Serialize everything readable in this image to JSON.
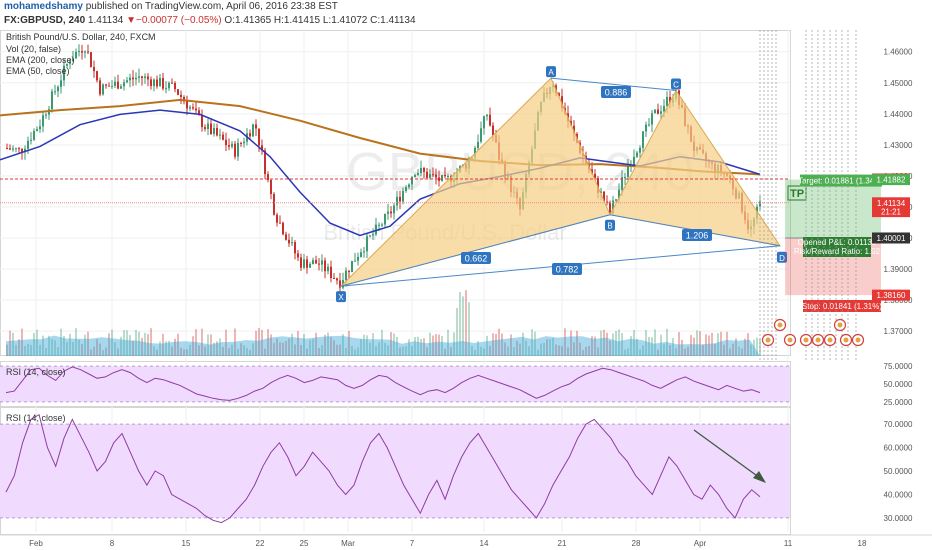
{
  "header": {
    "author": "mohamedshamy",
    "published_text": "published on TradingView.com, April 06, 2016 23:38 EST",
    "symbol_line": "FX:GBPUSD, 240",
    "last": "1.41134",
    "change": "▼−0.00077 (−0.05%)",
    "open": "O:1.41365",
    "high": "H:1.41415",
    "low": "L:1.41072",
    "close": "C:1.41134"
  },
  "colors": {
    "up": "#3d9970",
    "down": "#c8302c",
    "ema200": "#b8731b",
    "ema50": "#2b36b8",
    "pattern_fill": "#f6cf84",
    "pattern_line": "#4a88c7",
    "rsi": "#8e3da0",
    "rsi_band": "#f0dbff",
    "target": "#4caf50",
    "stop": "#e53935",
    "arrow": "#3e5a3c"
  },
  "chart_data": [
    {
      "type": "candlestick",
      "title": "British Pound/U.S. Dollar, 240, FXCM",
      "watermark_symbol": "GBPUSD",
      "watermark_name": "British Pound/U.S. Dollar",
      "legend": [
        "Vol (20, false)",
        "EMA (200, close)",
        "EMA (50, close)"
      ],
      "ylim": [
        1.362,
        1.467
      ],
      "y_ticks": [
        1.37,
        1.38,
        1.39,
        1.4,
        1.41,
        1.42,
        1.43,
        1.44,
        1.45,
        1.46
      ],
      "x_ticks": [
        "Feb",
        "8",
        "15",
        "22",
        "25",
        "Mar",
        "7",
        "14",
        "21",
        "28",
        "Apr",
        "11",
        "18"
      ],
      "price_tags": [
        {
          "label": "1.41902",
          "value": 1.41902,
          "color": "#e53935"
        },
        {
          "label": "1.41882",
          "value": 1.41882,
          "color": "#4caf50"
        },
        {
          "label": "1.41134",
          "value": 1.41134,
          "color": "#e53935"
        },
        {
          "label": "21:21",
          "value": 1.4085,
          "color": "#e53935"
        },
        {
          "label": "1.40001",
          "value": 1.40001,
          "color": "#333333"
        },
        {
          "label": "1.38160",
          "value": 1.3816,
          "color": "#e53935"
        }
      ],
      "ema200": [
        [
          0,
          1.4395
        ],
        [
          60,
          1.4412
        ],
        [
          120,
          1.4425
        ],
        [
          180,
          1.4445
        ],
        [
          240,
          1.4425
        ],
        [
          300,
          1.4378
        ],
        [
          360,
          1.4322
        ],
        [
          420,
          1.4272
        ],
        [
          480,
          1.4248
        ],
        [
          540,
          1.4235
        ],
        [
          600,
          1.4238
        ],
        [
          660,
          1.4226
        ],
        [
          700,
          1.4215
        ],
        [
          760,
          1.4205
        ]
      ],
      "ema50": [
        [
          0,
          1.4252
        ],
        [
          40,
          1.4295
        ],
        [
          80,
          1.4365
        ],
        [
          120,
          1.4398
        ],
        [
          160,
          1.4412
        ],
        [
          200,
          1.4398
        ],
        [
          240,
          1.4345
        ],
        [
          270,
          1.4262
        ],
        [
          300,
          1.4148
        ],
        [
          330,
          1.4048
        ],
        [
          360,
          1.4008
        ],
        [
          390,
          1.4038
        ],
        [
          420,
          1.4125
        ],
        [
          460,
          1.4175
        ],
        [
          500,
          1.4198
        ],
        [
          540,
          1.4225
        ],
        [
          580,
          1.4258
        ],
        [
          610,
          1.4245
        ],
        [
          640,
          1.4232
        ],
        [
          680,
          1.4262
        ],
        [
          720,
          1.4245
        ],
        [
          760,
          1.4205
        ]
      ],
      "harmonic_pattern": {
        "points": [
          {
            "label": "X",
            "date": "Feb 29",
            "value": 1.3845
          },
          {
            "label": "A",
            "date": "Mar 18",
            "value": 1.4515
          },
          {
            "label": "B",
            "date": "Mar 24",
            "value": 1.4075
          },
          {
            "label": "C",
            "date": "Mar 30",
            "value": 1.4475
          },
          {
            "label": "D",
            "date": "Apr 8",
            "value": 1.3975
          }
        ],
        "ratios": [
          "0.886",
          "0.662",
          "1.206",
          "0.782"
        ]
      },
      "position": {
        "target_label": "Target: 0.01881 (1.34%)",
        "tp_label": "TP",
        "open_pl_label": "Opened P&L: 0.01133",
        "risk_reward_label": "Risk/Reward Ratio: 1.02",
        "stop_label": "Stop: 0.01841 (1.31%)",
        "entry": 1.40001,
        "target": 1.41882,
        "stop": 1.3816
      }
    },
    {
      "type": "line",
      "title": "RSI (14, close)",
      "ylim": [
        22,
        78
      ],
      "band": [
        25,
        75
      ],
      "y_ticks": [
        25,
        50,
        75
      ],
      "y_tick_labels": [
        "25.0000",
        "50.0000",
        "75.0000"
      ],
      "series": [
        {
          "name": "RSI (14, close)",
          "values": [
            38,
            40,
            55,
            70,
            72,
            62,
            55,
            68,
            74,
            70,
            64,
            58,
            60,
            66,
            70,
            66,
            58,
            52,
            58,
            56,
            52,
            48,
            42,
            36,
            33,
            30,
            28,
            27,
            30,
            34,
            40,
            44,
            52,
            58,
            62,
            58,
            52,
            55,
            60,
            58,
            56,
            48,
            44,
            48,
            56,
            62,
            60,
            52,
            46,
            40,
            35,
            40,
            42,
            38,
            44,
            52,
            58,
            62,
            58,
            54,
            50,
            46,
            42,
            36,
            30,
            34,
            40,
            46,
            50,
            58,
            64,
            68,
            72,
            70,
            66,
            62,
            58,
            54,
            48,
            44,
            50,
            56,
            60,
            54,
            50,
            46,
            42,
            48,
            44,
            40,
            42,
            38
          ]
        }
      ]
    },
    {
      "type": "line",
      "title": "RSI (14, close)",
      "ylim": [
        24,
        76
      ],
      "band": [
        30,
        70
      ],
      "y_ticks": [
        30,
        40,
        50,
        60,
        70
      ],
      "y_tick_labels": [
        "30.0000",
        "40.0000",
        "50.0000",
        "60.0000",
        "70.0000"
      ],
      "annotation": "downward arrow (divergence)",
      "series": [
        {
          "name": "RSI (14, close)",
          "values": [
            41,
            48,
            62,
            72,
            74,
            60,
            52,
            64,
            72,
            65,
            58,
            50,
            54,
            62,
            66,
            58,
            50,
            44,
            50,
            48,
            40,
            38,
            36,
            34,
            31,
            29,
            28,
            30,
            34,
            38,
            44,
            52,
            58,
            62,
            56,
            48,
            52,
            58,
            54,
            50,
            44,
            40,
            44,
            54,
            62,
            66,
            60,
            52,
            44,
            38,
            32,
            40,
            46,
            38,
            48,
            56,
            62,
            66,
            60,
            54,
            48,
            42,
            38,
            34,
            30,
            36,
            44,
            50,
            56,
            64,
            70,
            72,
            68,
            64,
            58,
            54,
            48,
            44,
            40,
            48,
            56,
            52,
            46,
            40,
            38,
            44,
            40,
            34,
            30,
            38,
            42,
            39
          ]
        }
      ]
    }
  ]
}
